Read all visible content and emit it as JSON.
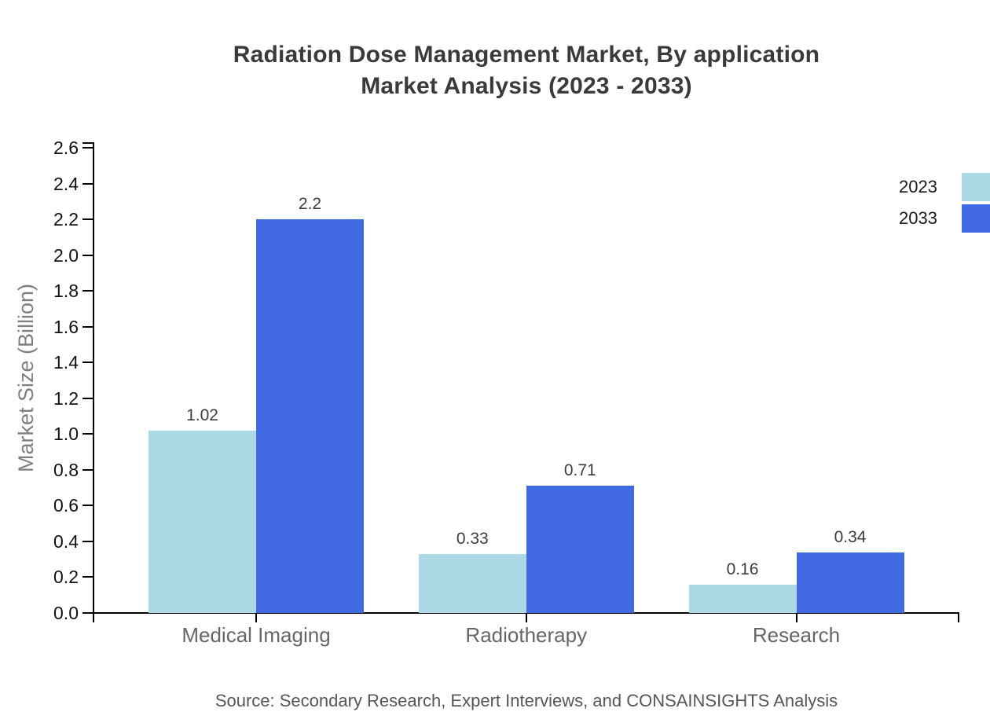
{
  "header": {
    "title_line1": "Radiation Dose Management Market, By application",
    "title_line2": "Market Analysis (2023 - 2033)"
  },
  "chart_data": {
    "type": "bar",
    "title": "Radiation Dose Management Market, By application Market Analysis (2023 - 2033)",
    "categories": [
      "Medical Imaging",
      "Radiotherapy",
      "Research"
    ],
    "series": [
      {
        "name": "2023",
        "color": "#ADD8E6",
        "values": [
          1.02,
          0.33,
          0.16
        ],
        "labels": [
          "1.02",
          "0.33",
          "0.16"
        ]
      },
      {
        "name": "2033",
        "color": "#4169E1",
        "values": [
          2.2,
          0.71,
          0.34
        ],
        "labels": [
          "2.2",
          "0.71",
          "0.34"
        ]
      }
    ],
    "xlabel": "",
    "ylabel": "Market Size (Billion)",
    "ylim": [
      0,
      2.6
    ],
    "ytick_step": 0.2,
    "ytick_labels": [
      "0.0",
      "0.2",
      "0.4",
      "0.6",
      "0.8",
      "1.0",
      "1.2",
      "1.4",
      "1.6",
      "1.8",
      "2.0",
      "2.2",
      "2.4",
      "2.6"
    ],
    "grid": false,
    "legend_position": "top-right",
    "axis_color": "#000000",
    "background_color": "#ffffff"
  },
  "footer": {
    "source": "Source: Secondary Research, Expert Interviews, and CONSAINSIGHTS Analysis"
  }
}
